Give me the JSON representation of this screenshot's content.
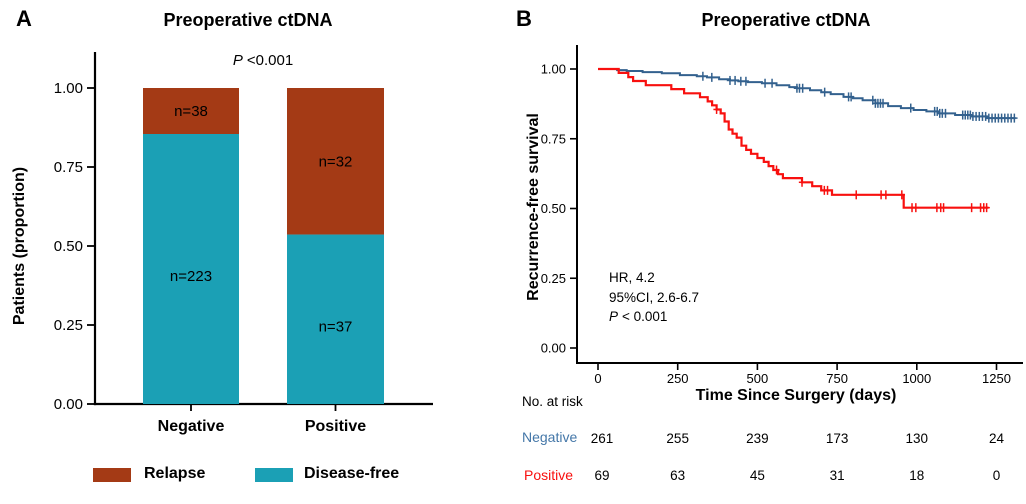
{
  "chart_data": [
    {
      "type": "bar",
      "subtype": "stacked_proportion",
      "panel_label": "A",
      "title": "Preoperative ctDNA",
      "p_annotation": {
        "italic": "P",
        "rest": "<0.001"
      },
      "ylabel": "Patients (proportion)",
      "xlabel": "",
      "ylim": [
        0,
        1
      ],
      "yticks": [
        1.0,
        0.75,
        0.5,
        0.25,
        0.0
      ],
      "ytick_labels": [
        "1.00",
        "0.75",
        "0.50",
        "0.25",
        "0.00"
      ],
      "categories": [
        "Negative",
        "Positive"
      ],
      "series": [
        {
          "name": "Disease-free",
          "color": "#1BA0B5",
          "counts": [
            223,
            37
          ],
          "labels": [
            "n=223",
            "n=37"
          ]
        },
        {
          "name": "Relapse",
          "color": "#A43A15",
          "counts": [
            38,
            32
          ],
          "labels": [
            "n=38",
            "n=32"
          ]
        }
      ],
      "totals": [
        261,
        69
      ],
      "legend": [
        {
          "label": "Relapse",
          "color": "#A43A15"
        },
        {
          "label": "Disease-free",
          "color": "#1BA0B5"
        }
      ]
    },
    {
      "type": "line",
      "subtype": "kaplan_meier_step",
      "panel_label": "B",
      "title": "Preoperative ctDNA",
      "xlabel": "Time Since Surgery (days)",
      "ylabel": "Recurrence-free survival",
      "xlim": [
        0,
        1330
      ],
      "ylim": [
        0,
        1
      ],
      "xticks": [
        0,
        250,
        500,
        750,
        1000,
        1250
      ],
      "yticks": [
        1.0,
        0.75,
        0.5,
        0.25,
        0.0
      ],
      "ytick_labels": [
        "1.00",
        "0.75",
        "0.50",
        "0.25",
        "0.00"
      ],
      "stats_annotation": {
        "line1": "HR, 4.2",
        "line2": "95%CI, 2.6-6.7",
        "p_italic": "P",
        "p_rest": "< 0.001"
      },
      "series": [
        {
          "name": "Negative",
          "color": "#33618E",
          "points": [
            [
              0,
              1.0
            ],
            [
              60,
              0.996
            ],
            [
              90,
              0.993
            ],
            [
              140,
              0.989
            ],
            [
              200,
              0.985
            ],
            [
              257,
              0.978
            ],
            [
              310,
              0.974
            ],
            [
              342,
              0.97
            ],
            [
              380,
              0.963
            ],
            [
              414,
              0.959
            ],
            [
              440,
              0.956
            ],
            [
              470,
              0.953
            ],
            [
              514,
              0.949
            ],
            [
              560,
              0.942
            ],
            [
              600,
              0.935
            ],
            [
              624,
              0.931
            ],
            [
              665,
              0.924
            ],
            [
              700,
              0.917
            ],
            [
              730,
              0.91
            ],
            [
              770,
              0.9
            ],
            [
              800,
              0.895
            ],
            [
              830,
              0.888
            ],
            [
              870,
              0.877
            ],
            [
              910,
              0.867
            ],
            [
              950,
              0.86
            ],
            [
              990,
              0.853
            ],
            [
              1030,
              0.848
            ],
            [
              1070,
              0.841
            ],
            [
              1120,
              0.835
            ],
            [
              1170,
              0.83
            ],
            [
              1220,
              0.824
            ]
          ],
          "end_time": 1310,
          "censor_times": [
            329,
            357,
            414,
            430,
            448,
            464,
            524,
            546,
            624,
            632,
            642,
            711,
            786,
            794,
            862,
            870,
            878,
            886,
            894,
            981,
            1056,
            1064,
            1072,
            1080,
            1090,
            1144,
            1152,
            1160,
            1168,
            1176,
            1186,
            1196,
            1206,
            1216,
            1226,
            1236,
            1246,
            1256,
            1266,
            1276,
            1286,
            1296,
            1306
          ]
        },
        {
          "name": "Positive",
          "color": "#F8100F",
          "points": [
            [
              0,
              1.0
            ],
            [
              65,
              0.986
            ],
            [
              95,
              0.971
            ],
            [
              110,
              0.957
            ],
            [
              150,
              0.942
            ],
            [
              230,
              0.928
            ],
            [
              270,
              0.913
            ],
            [
              320,
              0.899
            ],
            [
              344,
              0.884
            ],
            [
              358,
              0.87
            ],
            [
              372,
              0.855
            ],
            [
              385,
              0.841
            ],
            [
              397,
              0.812
            ],
            [
              410,
              0.783
            ],
            [
              422,
              0.768
            ],
            [
              435,
              0.754
            ],
            [
              450,
              0.725
            ],
            [
              465,
              0.71
            ],
            [
              480,
              0.696
            ],
            [
              500,
              0.681
            ],
            [
              520,
              0.667
            ],
            [
              535,
              0.652
            ],
            [
              550,
              0.638
            ],
            [
              565,
              0.623
            ],
            [
              580,
              0.609
            ],
            [
              640,
              0.594
            ],
            [
              672,
              0.58
            ],
            [
              700,
              0.565
            ],
            [
              734,
              0.549
            ],
            [
              959,
              0.503
            ]
          ],
          "end_time": 1225,
          "censor_times": [
            372,
            560,
            640,
            710,
            720,
            810,
            888,
            903,
            953,
            985,
            997,
            1063,
            1075,
            1084,
            1172,
            1200,
            1210,
            1219
          ]
        }
      ],
      "risk_table": {
        "title": "No. at risk",
        "times": [
          0,
          250,
          500,
          750,
          1000,
          1250
        ],
        "rows": [
          {
            "name": "Negative",
            "color": "#4477A8",
            "values": [
              "261",
              "255",
              "239",
              "173",
              "130",
              "24"
            ]
          },
          {
            "name": "Positive",
            "color": "#F8100F",
            "values": [
              "69",
              "63",
              "45",
              "31",
              "18",
              "0"
            ]
          }
        ]
      }
    }
  ]
}
